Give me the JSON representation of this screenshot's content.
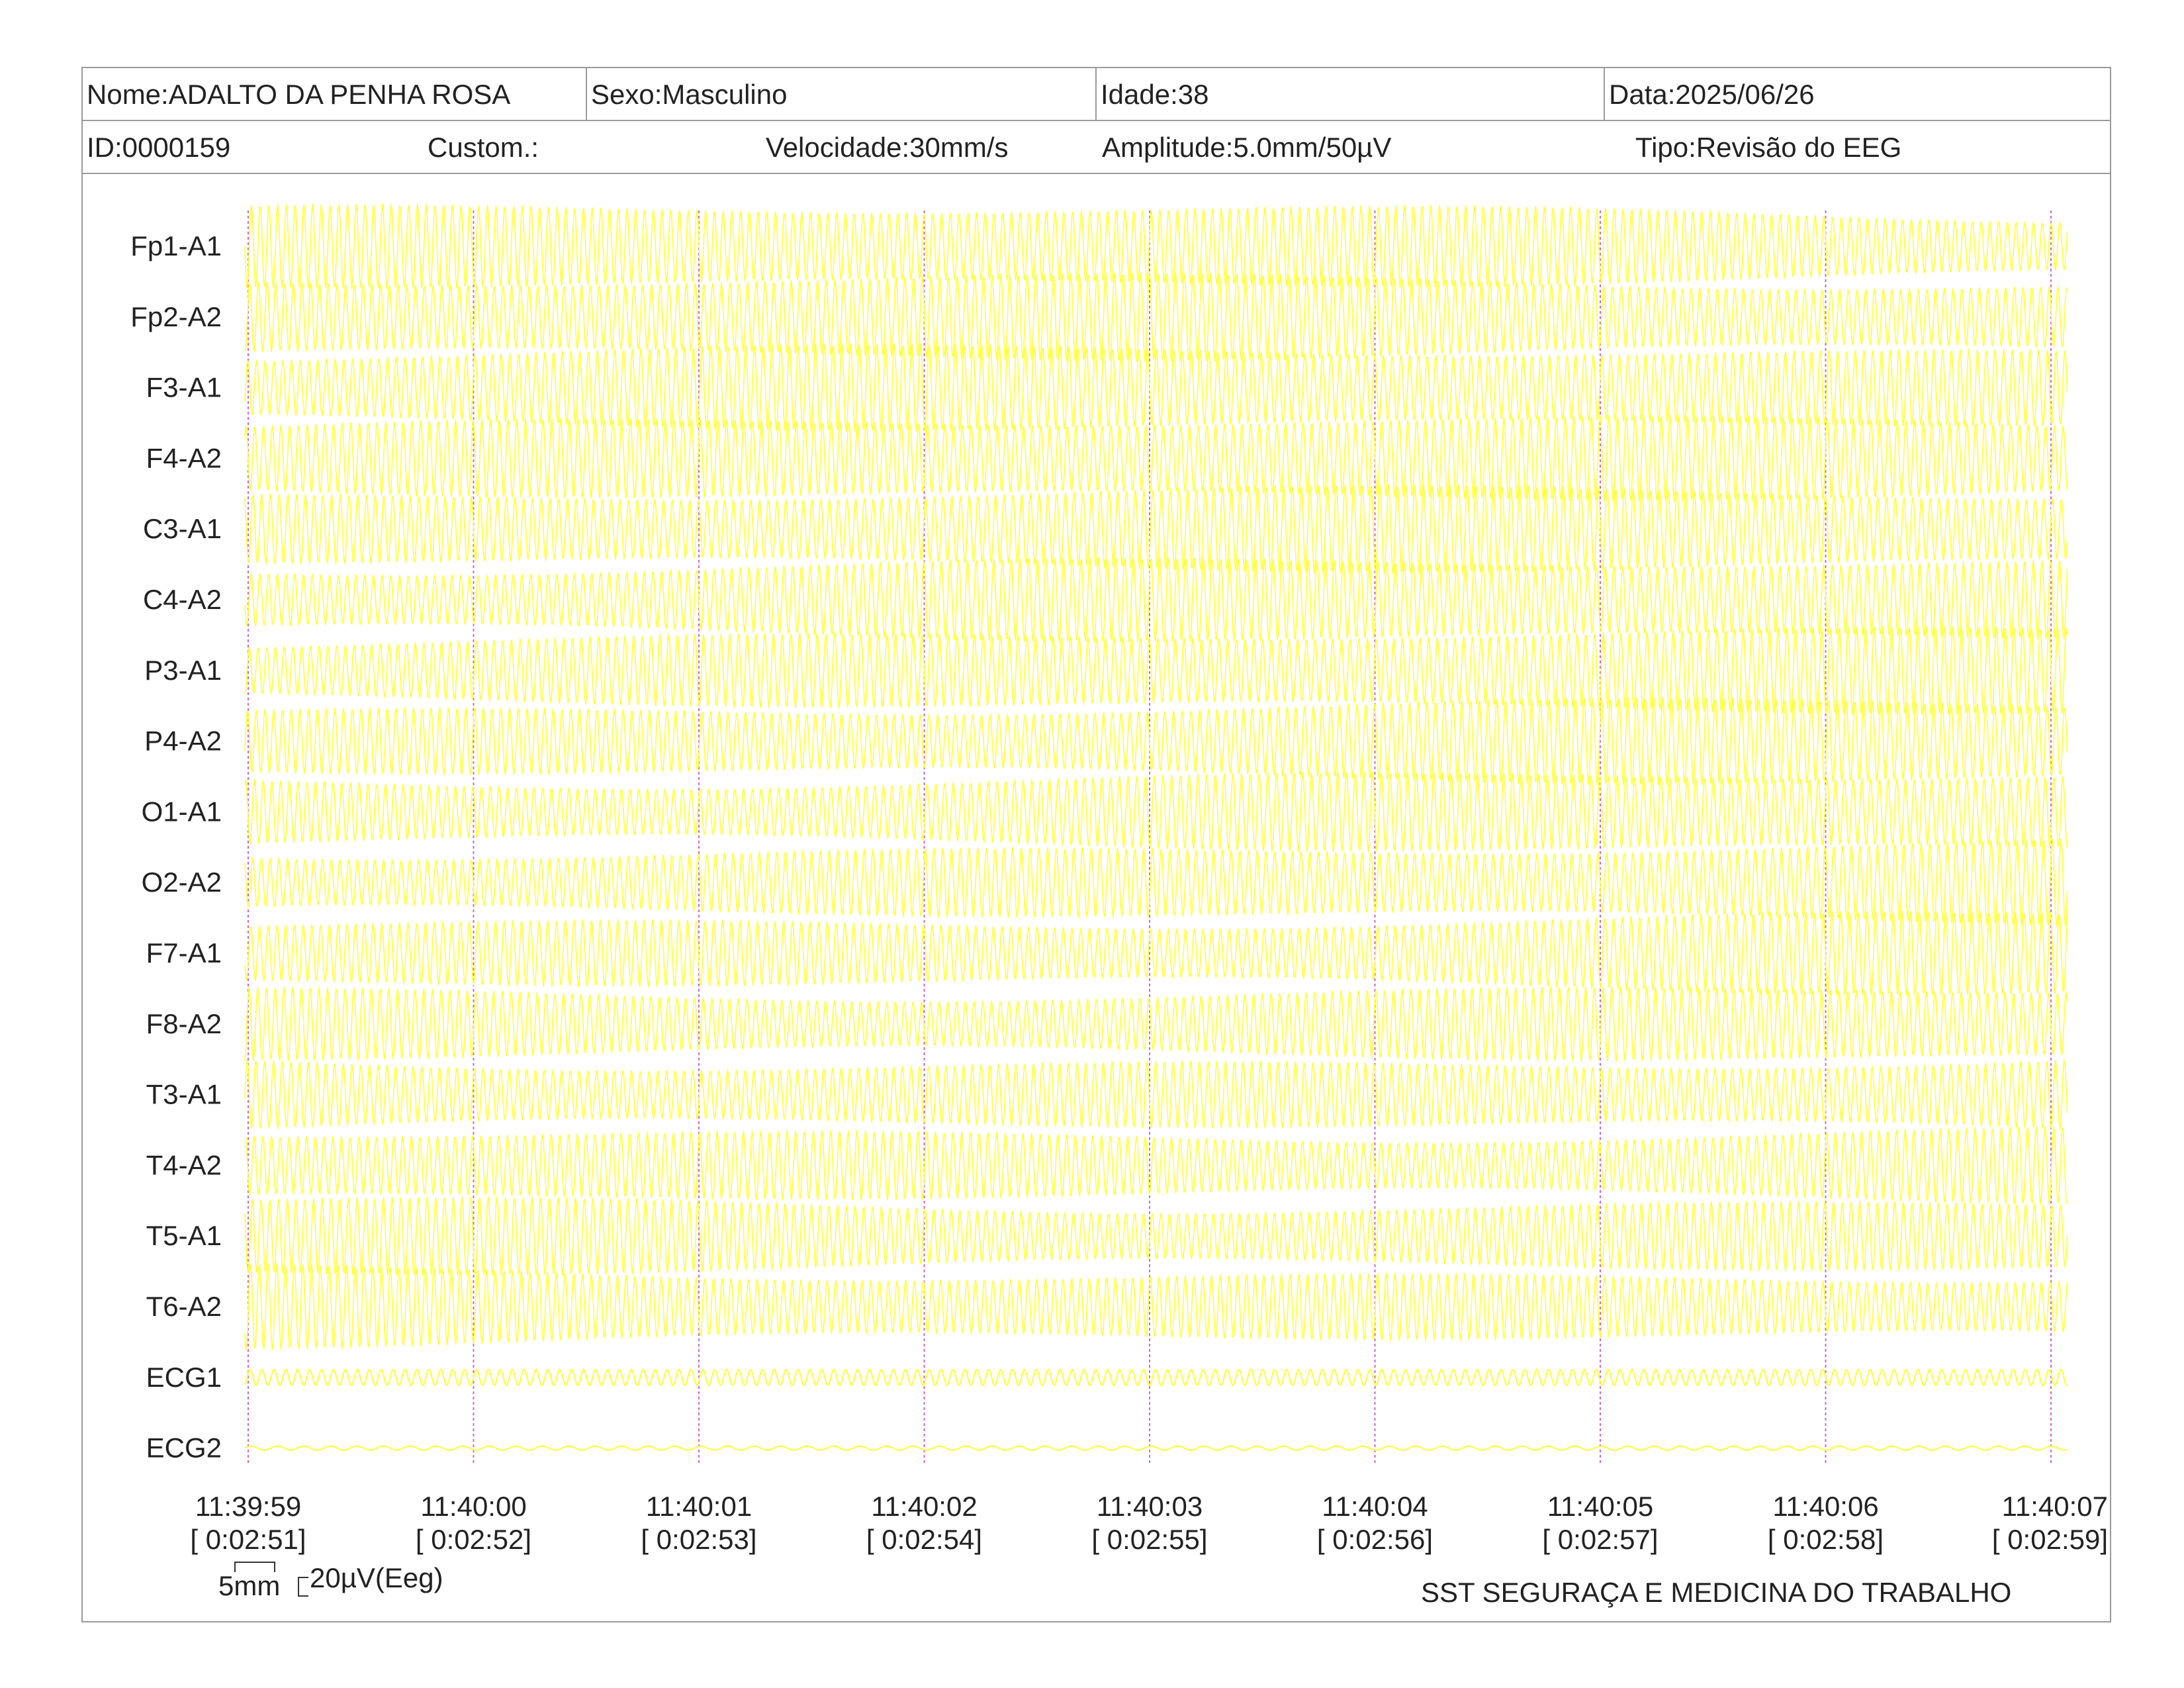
{
  "header": {
    "nome": "Nome:ADALTO DA PENHA ROSA",
    "sexo": "Sexo:Masculino",
    "idade": "Idade:38",
    "data": "Data:2025/06/26",
    "id": "ID:0000159",
    "custom": "Custom.:",
    "velocidade": "Velocidade:30mm/s",
    "amplitude": "Amplitude:5.0mm/50µV",
    "tipo": "Tipo:Revisão do EEG"
  },
  "colors": {
    "trace": "#ffff33",
    "marker": "#cc66cc",
    "border": "#9a9a9a"
  },
  "chart_data": {
    "type": "line",
    "title": "",
    "channels": [
      "Fp1-A1",
      "Fp2-A2",
      "F3-A1",
      "F4-A2",
      "C3-A1",
      "C4-A2",
      "P3-A1",
      "P4-A2",
      "O1-A1",
      "O2-A2",
      "F7-A1",
      "F8-A2",
      "T3-A1",
      "T4-A2",
      "T5-A1",
      "T6-A2",
      "ECG1",
      "ECG2"
    ],
    "time_ticks": [
      {
        "clock": "11:39:59",
        "elapsed": "[ 0:02:51]"
      },
      {
        "clock": "11:40:00",
        "elapsed": "[ 0:02:52]"
      },
      {
        "clock": "11:40:01",
        "elapsed": "[ 0:02:53]"
      },
      {
        "clock": "11:40:02",
        "elapsed": "[ 0:02:54]"
      },
      {
        "clock": "11:40:03",
        "elapsed": "[ 0:02:55]"
      },
      {
        "clock": "11:40:04",
        "elapsed": "[ 0:02:56]"
      },
      {
        "clock": "11:40:05",
        "elapsed": "[ 0:02:57]"
      },
      {
        "clock": "11:40:06",
        "elapsed": "[ 0:02:58]"
      },
      {
        "clock": "11:40:07",
        "elapsed": "[ 0:02:59]"
      }
    ],
    "series_style": "dense yellow oscillating traces, one per channel",
    "grid": "vertical dotted magenta second markers"
  },
  "scale": {
    "time_label": "5mm",
    "amp_label": "20µV(Eeg)"
  },
  "footer": {
    "company": "SST SEGURAÇA E MEDICINA DO TRABALHO"
  }
}
